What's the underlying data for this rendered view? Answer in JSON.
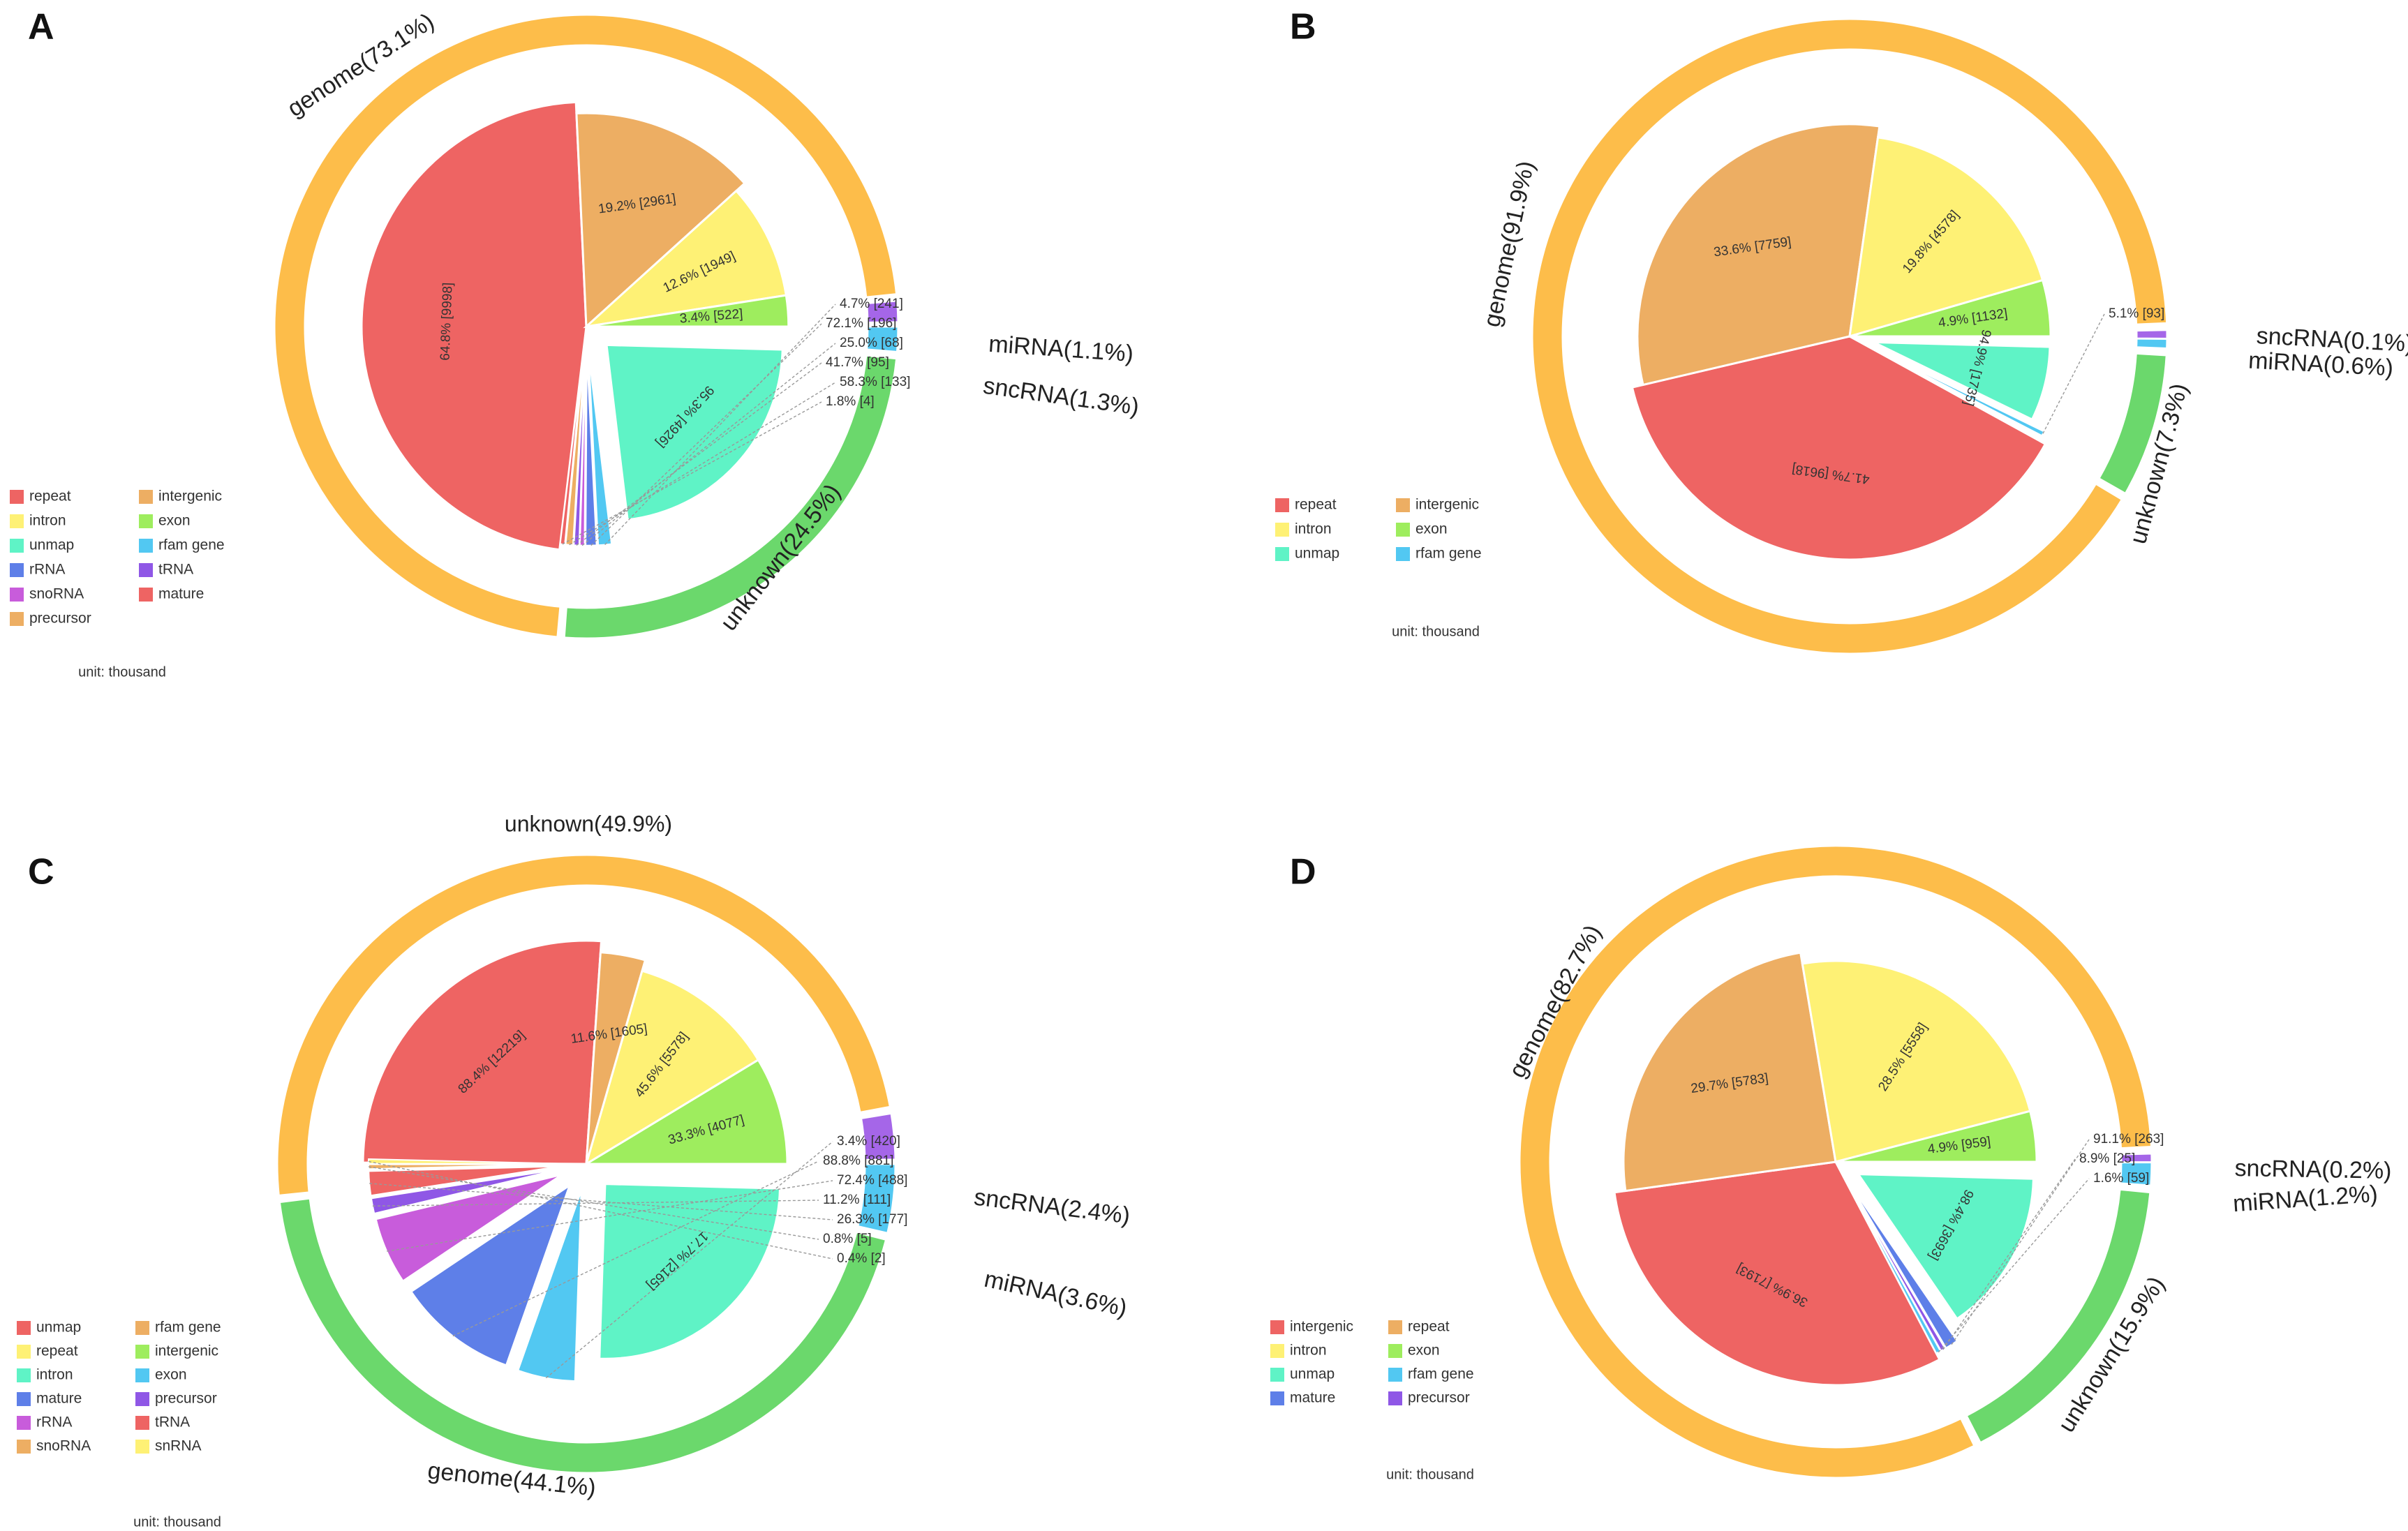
{
  "figure_title": "",
  "chart_data": [
    {
      "panel": "A",
      "type": "pie",
      "outer_ring": [
        {
          "name": "genome",
          "label": "genome(73.1%)",
          "percent": 73.1,
          "color": "#FDBD4A"
        },
        {
          "name": "unknown",
          "label": "unknown(24.5%)",
          "percent": 24.5,
          "color": "#6BD86C"
        },
        {
          "name": "sncRNA",
          "label": "sncRNA(1.3%)",
          "percent": 1.3,
          "color": "#52C8F2"
        },
        {
          "name": "miRNA",
          "label": "miRNA(1.1%)",
          "percent": 1.1,
          "color": "#A566E8"
        }
      ],
      "inner_pie": [
        {
          "name": "repeat",
          "label": "64.8% [9998]",
          "value": 9998,
          "color": "#EE6463"
        },
        {
          "name": "intergenic",
          "label": "19.2% [2961]",
          "value": 2961,
          "color": "#EDAE63"
        },
        {
          "name": "intron",
          "label": "12.6% [1949]",
          "value": 1949,
          "color": "#FEF175"
        },
        {
          "name": "exon",
          "label": "3.4% [522]",
          "value": 522,
          "color": "#9EED5E"
        },
        {
          "name": "unmap",
          "label": "95.3% [4926]",
          "value": 4926,
          "color": "#5FF3C6"
        },
        {
          "name": "rfam gene",
          "label": "4.7% [241]",
          "value": 241,
          "color": "#52C8F2"
        },
        {
          "name": "rRNA",
          "label": "72.1% [196]",
          "value": 196,
          "color": "#5E7FE8"
        },
        {
          "name": "snoRNA",
          "label": "25.0% [68]",
          "value": 68,
          "color": "#C85CDB"
        },
        {
          "name": "tRNA",
          "label": "41.7% [95]",
          "value": 95,
          "color": "#8F57E6"
        },
        {
          "name": "precursor",
          "label": "58.3% [133]",
          "value": 133,
          "color": "#EDAE63"
        },
        {
          "name": "mature",
          "label": "1.8% [4]",
          "value": 4,
          "color": "#EE6463"
        }
      ],
      "legend": [
        "repeat",
        "intergenic",
        "intron",
        "exon",
        "unmap",
        "rfam gene",
        "rRNA",
        "tRNA",
        "snoRNA",
        "mature",
        "precursor"
      ],
      "unit": "unit: thousand"
    },
    {
      "panel": "B",
      "type": "pie",
      "outer_ring": [
        {
          "name": "genome",
          "label": "genome(91.9%)",
          "percent": 91.9,
          "color": "#FDBD4A"
        },
        {
          "name": "unknown",
          "label": "unknown(7.3%)",
          "percent": 7.3,
          "color": "#6BD86C"
        },
        {
          "name": "miRNA",
          "label": "miRNA(0.6%)",
          "percent": 0.6,
          "color": "#52C8F2"
        },
        {
          "name": "sncRNA",
          "label": "sncRNA(0.1%)",
          "percent": 0.1,
          "color": "#A566E8"
        }
      ],
      "inner_pie": [
        {
          "name": "repeat",
          "label": "41.7% [9618]",
          "value": 9618,
          "color": "#EE6463"
        },
        {
          "name": "intergenic",
          "label": "33.6% [7759]",
          "value": 7759,
          "color": "#EDAE63"
        },
        {
          "name": "intron",
          "label": "19.8% [4578]",
          "value": 4578,
          "color": "#FEF175"
        },
        {
          "name": "exon",
          "label": "4.9% [1132]",
          "value": 1132,
          "color": "#9EED5E"
        },
        {
          "name": "unmap",
          "label": "94.9% [1735]",
          "value": 1735,
          "color": "#5FF3C6"
        },
        {
          "name": "rfam gene",
          "label": "5.1% [93]",
          "value": 93,
          "color": "#52C8F2"
        }
      ],
      "legend": [
        "repeat",
        "intergenic",
        "intron",
        "exon",
        "unmap",
        "rfam gene"
      ],
      "unit": "unit: thousand"
    },
    {
      "panel": "C",
      "type": "pie",
      "top_label": "unknown(49.9%)",
      "outer_ring": [
        {
          "name": "unknown",
          "label": "",
          "percent": 49.9,
          "color": "#FDBD4A"
        },
        {
          "name": "genome",
          "label": "genome(44.1%)",
          "percent": 44.1,
          "color": "#6BD86C"
        },
        {
          "name": "miRNA",
          "label": "miRNA(3.6%)",
          "percent": 3.6,
          "color": "#52C8F2"
        },
        {
          "name": "sncRNA",
          "label": "sncRNA(2.4%)",
          "percent": 2.4,
          "color": "#A566E8"
        }
      ],
      "inner_pie": [
        {
          "name": "unmap",
          "label": "88.4% [12219]",
          "value": 12219,
          "color": "#EE6463"
        },
        {
          "name": "rfam gene",
          "label": "11.6% [1605]",
          "value": 1605,
          "color": "#EDAE63"
        },
        {
          "name": "repeat",
          "label": "45.6% [5578]",
          "value": 5578,
          "color": "#FEF175"
        },
        {
          "name": "intergenic",
          "label": "33.3% [4077]",
          "value": 4077,
          "color": "#9EED5E"
        },
        {
          "name": "intron",
          "label": "17.7% [2165]",
          "value": 2165,
          "color": "#5FF3C6"
        },
        {
          "name": "exon",
          "label": "3.4% [420]",
          "value": 420,
          "color": "#52C8F2"
        },
        {
          "name": "mature",
          "label": "88.8% [881]",
          "value": 881,
          "color": "#5E7FE8"
        },
        {
          "name": "rRNA",
          "label": "72.4% [488]",
          "value": 488,
          "color": "#C85CDB"
        },
        {
          "name": "precursor",
          "label": "11.2% [111]",
          "value": 111,
          "color": "#8F57E6"
        },
        {
          "name": "tRNA",
          "label": "26.3% [177]",
          "value": 177,
          "color": "#EE6463"
        },
        {
          "name": "snoRNA",
          "label": "0.8% [5]",
          "value": 5,
          "color": "#EDAE63"
        },
        {
          "name": "snRNA",
          "label": "0.4% [2]",
          "value": 2,
          "color": "#FEF175"
        }
      ],
      "legend": [
        "unmap",
        "rfam gene",
        "repeat",
        "intergenic",
        "intron",
        "exon",
        "mature",
        "precursor",
        "rRNA",
        "tRNA",
        "snoRNA",
        "snRNA"
      ],
      "unit": "unit: thousand"
    },
    {
      "panel": "D",
      "type": "pie",
      "outer_ring": [
        {
          "name": "genome",
          "label": "genome(82.7%)",
          "percent": 82.7,
          "color": "#FDBD4A"
        },
        {
          "name": "unknown",
          "label": "unknown(15.9%)",
          "percent": 15.9,
          "color": "#6BD86C"
        },
        {
          "name": "miRNA",
          "label": "miRNA(1.2%)",
          "percent": 1.2,
          "color": "#52C8F2"
        },
        {
          "name": "sncRNA",
          "label": "sncRNA(0.2%)",
          "percent": 0.2,
          "color": "#A566E8"
        }
      ],
      "inner_pie": [
        {
          "name": "intergenic",
          "label": "36.9% [7193]",
          "value": 7193,
          "color": "#EE6463"
        },
        {
          "name": "repeat",
          "label": "29.7% [5783]",
          "value": 5783,
          "color": "#EDAE63"
        },
        {
          "name": "intron",
          "label": "28.5% [5558]",
          "value": 5558,
          "color": "#FEF175"
        },
        {
          "name": "exon",
          "label": "4.9% [959]",
          "value": 959,
          "color": "#9EED5E"
        },
        {
          "name": "unmap",
          "label": "98.4% [3693]",
          "value": 3693,
          "color": "#5FF3C6"
        },
        {
          "name": "mature",
          "label": "91.1% [263]",
          "value": 263,
          "color": "#5E7FE8"
        },
        {
          "name": "precursor",
          "label": "8.9% [25]",
          "value": 25,
          "color": "#8F57E6"
        },
        {
          "name": "rfam gene",
          "label": "1.6% [59]",
          "value": 59,
          "color": "#52C8F2"
        }
      ],
      "legend": [
        "intergenic",
        "repeat",
        "intron",
        "exon",
        "unmap",
        "rfam gene",
        "mature",
        "precursor"
      ],
      "unit": "unit: thousand"
    }
  ],
  "legend_colors": {
    "repeat": "#EE6463",
    "intergenic": "#EDAE63",
    "intron": "#FEF175",
    "exon": "#9EED5E",
    "unmap": "#5FF3C6",
    "rfam gene": "#52C8F2",
    "rRNA": "#5E7FE8",
    "tRNA": "#8F57E6",
    "snoRNA": "#C85CDB",
    "mature": "#EE6463",
    "precursor": "#EDAE63"
  }
}
